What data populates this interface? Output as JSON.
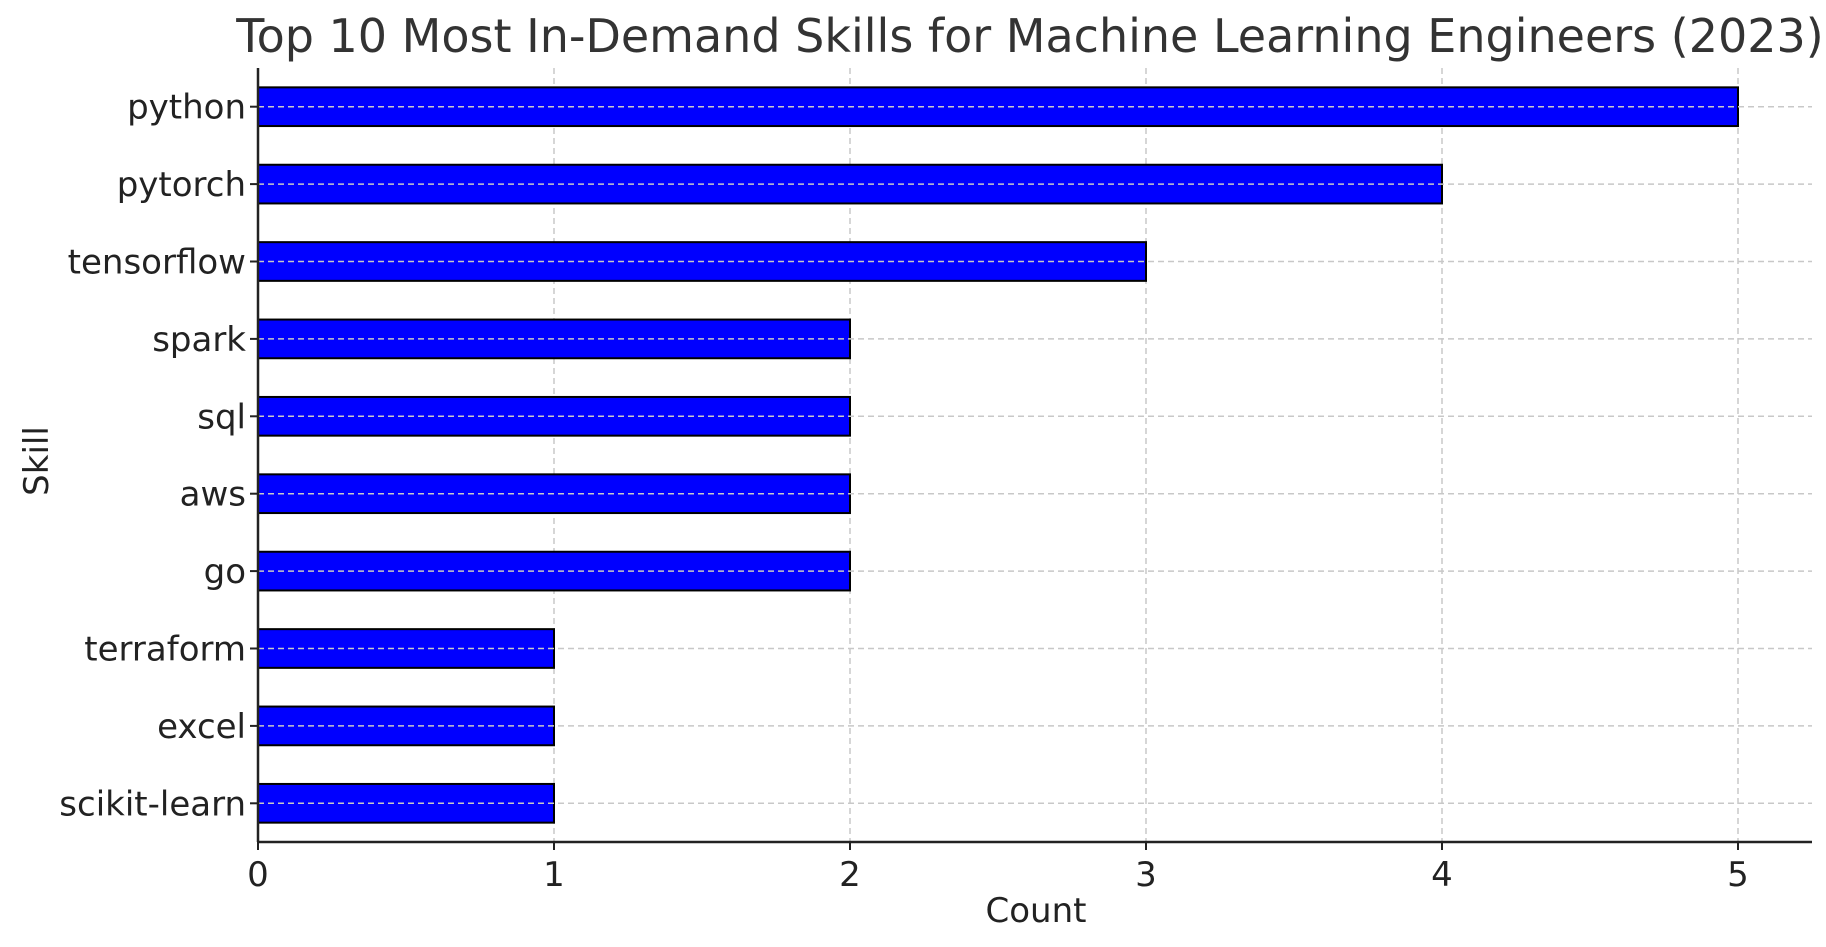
{
  "chart_data": {
    "type": "bar",
    "orientation": "horizontal",
    "title": "Top 10 Most In-Demand Skills for Machine Learning Engineers (2023)",
    "xlabel": "Count",
    "ylabel": "Skill",
    "categories": [
      "python",
      "pytorch",
      "tensorflow",
      "spark",
      "sql",
      "aws",
      "go",
      "terraform",
      "excel",
      "scikit-learn"
    ],
    "values": [
      5,
      4,
      3,
      2,
      2,
      2,
      2,
      1,
      1,
      1
    ],
    "xlim": [
      0,
      5.25
    ],
    "xticks": [
      0,
      1,
      2,
      3,
      4,
      5
    ],
    "grid": true,
    "bar_color": "#0000ff",
    "bar_edge_color": "#000000"
  }
}
